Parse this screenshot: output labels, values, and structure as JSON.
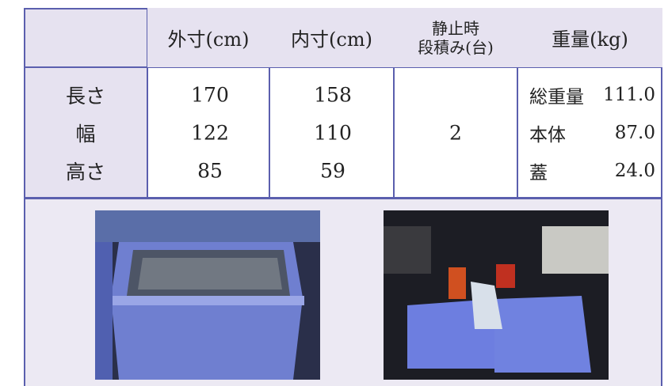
{
  "table": {
    "header": [
      {
        "lines": [
          "外寸(cm)"
        ]
      },
      {
        "lines": [
          "内寸(cm)"
        ]
      },
      {
        "lines": [
          "静止時",
          "段積み(台)"
        ]
      },
      {
        "lines": [
          "重量(kg)"
        ]
      }
    ],
    "rows": [
      {
        "label": "長さ",
        "outer": "170",
        "inner": "158"
      },
      {
        "label": "幅",
        "outer": "122",
        "inner": "110"
      },
      {
        "label": "高さ",
        "outer": "85",
        "inner": "59"
      }
    ],
    "stacking": "2",
    "weight": [
      {
        "label": "総重量",
        "value": "111.0"
      },
      {
        "label": "本体",
        "value": "87.0"
      },
      {
        "label": "蓋",
        "value": "24.0"
      }
    ]
  }
}
